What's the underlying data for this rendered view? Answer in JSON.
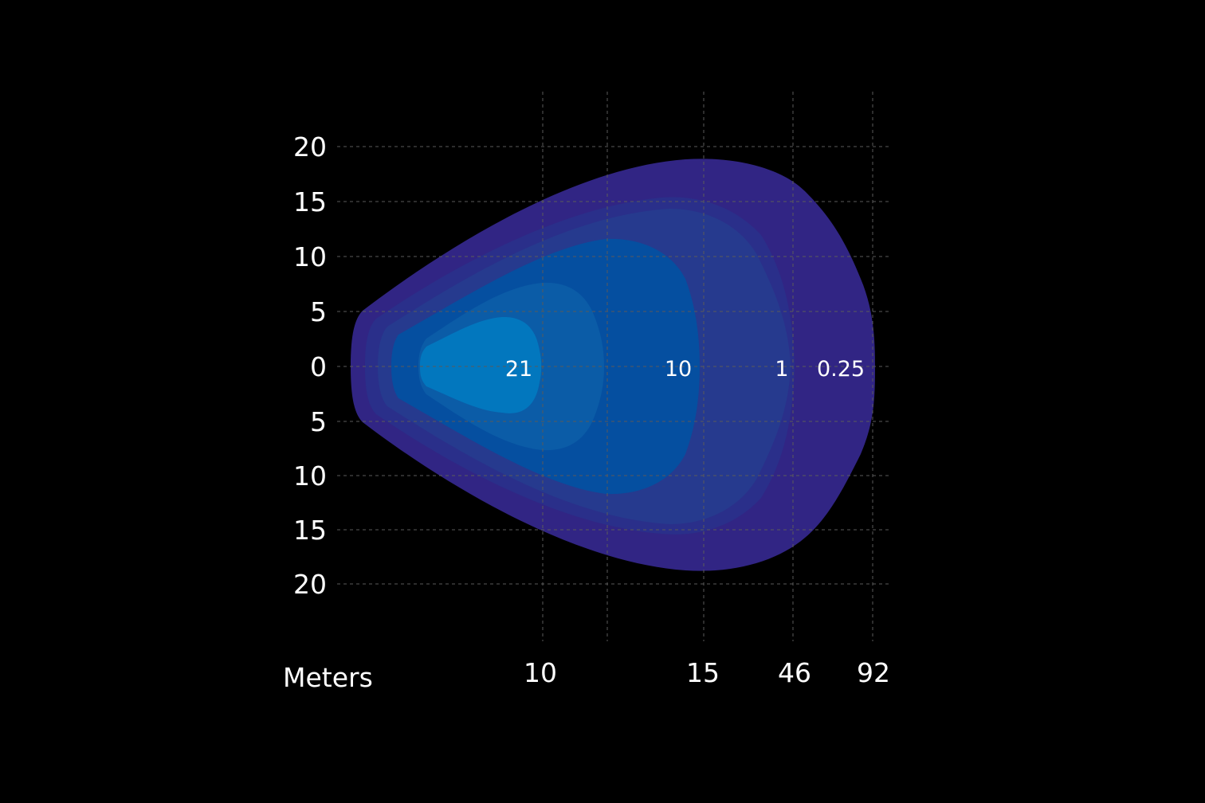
{
  "chart_data": {
    "type": "area",
    "title": "",
    "xlabel": "Meters",
    "ylabel": "",
    "x_tick_labels": [
      "10",
      "15",
      "46",
      "92"
    ],
    "y_tick_labels": [
      "20",
      "15",
      "10",
      "5",
      "0",
      "5",
      "10",
      "15",
      "20"
    ],
    "grid": true,
    "zones": [
      {
        "label": "0.25",
        "color": "#312584"
      },
      {
        "label": "",
        "color": "#2a2f8a"
      },
      {
        "label": "1",
        "color": "#263a8e"
      },
      {
        "label": "10",
        "color": "#054fa0"
      },
      {
        "label": "",
        "color": "#0b5ca7"
      },
      {
        "label": "21",
        "color": "#0277be"
      }
    ]
  },
  "colors": {
    "background": "#000000",
    "text": "#ffffff",
    "gridline": "#5a5a5a"
  }
}
